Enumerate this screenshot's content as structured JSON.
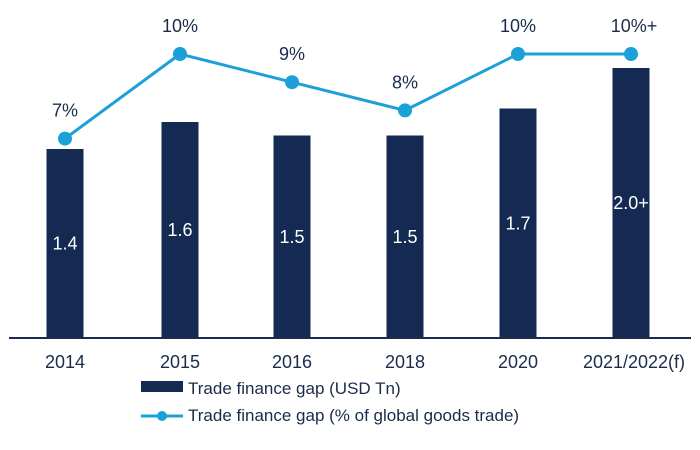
{
  "chart_data": {
    "type": "bar+line",
    "title": "",
    "xlabel": "",
    "ylabel": "",
    "categories": [
      "2014",
      "2015",
      "2016",
      "2018",
      "2020",
      "2021/2022(f)"
    ],
    "series": [
      {
        "name": "Trade finance gap (USD Tn)",
        "type": "bar",
        "values": [
          1.4,
          1.6,
          1.5,
          1.5,
          1.7,
          2.0
        ],
        "labels": [
          "1.4",
          "1.6",
          "1.5",
          "1.5",
          "1.7",
          "2.0+"
        ],
        "color": "#142a52"
      },
      {
        "name": "Trade finance gap (% of global goods trade)",
        "type": "line",
        "values": [
          7,
          10,
          9,
          8,
          10,
          10
        ],
        "labels": [
          "7%",
          "10%",
          "9%",
          "8%",
          "10%",
          "10%+"
        ],
        "color": "#1ba0d8"
      }
    ],
    "ylim": [
      0,
      2.5
    ],
    "y2lim": [
      0,
      12
    ],
    "grid": false,
    "legend": "bottom",
    "text_color": "#1a2b4c"
  }
}
